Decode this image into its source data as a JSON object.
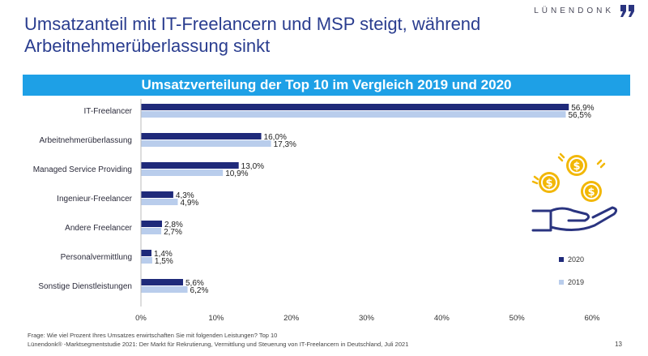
{
  "brand": {
    "name": "LÜNENDONK"
  },
  "headline": "Umsatzanteil mit IT-Freelancern und MSP steigt, während Arbeitnehmerüberlassung sinkt",
  "chart_data": {
    "type": "bar",
    "orientation": "horizontal",
    "title": "Umsatzverteilung der Top 10 im Vergleich 2019 und 2020",
    "categories": [
      "IT-Freelancer",
      "Arbeitnehmerüberlassung",
      "Managed Service Providing",
      "Ingenieur-Freelancer",
      "Andere Freelancer",
      "Personalvermittlung",
      "Sonstige Dienstleistungen"
    ],
    "series": [
      {
        "name": "2020",
        "values": [
          56.9,
          16.0,
          13.0,
          4.3,
          2.8,
          1.4,
          5.6
        ],
        "labels": [
          "56,9%",
          "16,0%",
          "13,0%",
          "4,3%",
          "2,8%",
          "1,4%",
          "5,6%"
        ],
        "color": "#1f2a7a"
      },
      {
        "name": "2019",
        "values": [
          56.5,
          17.3,
          10.9,
          4.9,
          2.7,
          1.5,
          6.2
        ],
        "labels": [
          "56,5%",
          "17,3%",
          "10,9%",
          "4,9%",
          "2,7%",
          "1,5%",
          "6,2%"
        ],
        "color": "#b9cdec"
      }
    ],
    "xlim": [
      0,
      60
    ],
    "xticks": [
      0,
      10,
      20,
      30,
      40,
      50,
      60
    ],
    "xtick_labels": [
      "0%",
      "10%",
      "20%",
      "30%",
      "40%",
      "50%",
      "60%"
    ],
    "legend_position": "right",
    "grid": false
  },
  "footer": {
    "question": "Frage: Wie viel Prozent Ihres Umsatzes erwirtschaften Sie mit folgenden Leistungen? Top 10",
    "source": "Lünendonk® -Marktsegmentstudie 2021: Der Markt für Rekrutierung, Vermittlung und Steuerung von IT-Freelancern in Deutschland, Juli 2021",
    "page": "13"
  },
  "illustration": {
    "icon": "hand-with-coins-icon"
  },
  "colors": {
    "headline": "#2a3d8f",
    "banner": "#1ea0e6",
    "coin": "#f2b705",
    "hand": "#2a3480"
  }
}
